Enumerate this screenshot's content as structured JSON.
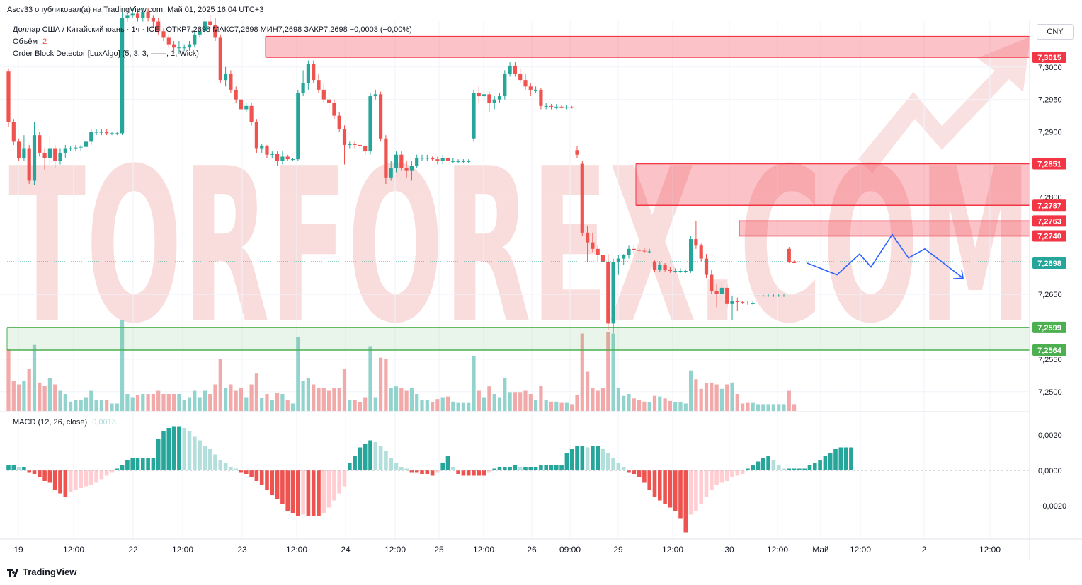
{
  "header": {
    "published": "Ascv33 опубликовал(а) на TradingView.com, Май 01, 2025 16:04 UTC+3",
    "symbol": "Доллар США / Китайский юань · 1ч · ICE",
    "ohlc": "ОТКР7,2698  МАКС7,2698  МИН7,2698  ЗАКР7,2698  −0,0003 (−0,00%)",
    "volume_label": "Объём",
    "volume_value": "2",
    "indicator": "Order Block Detector [LuxAlgo] (5, 3, 3, ——, 1, Wick)"
  },
  "currency_button": "CNY",
  "brand": "TradingView",
  "watermark": "TORFOREX.COM",
  "colors": {
    "up": "#26a69a",
    "down": "#ef5350",
    "up_light": "#b2dfdb",
    "down_light": "#ffcdd2",
    "zone_red": "#f23645",
    "zone_green": "#4caf50",
    "forecast": "#2962ff"
  },
  "chart_data": {
    "type": "candlestick",
    "price_axis": {
      "ticks": [
        "7,3000",
        "7,2950",
        "7,2900",
        "7,2800",
        "7,2650",
        "7,2550",
        "7,2500"
      ],
      "min": 7.2475,
      "max": 7.3055
    },
    "price_badges": [
      {
        "label": "7,3015",
        "color": "red"
      },
      {
        "label": "7,2851",
        "color": "red"
      },
      {
        "label": "7,2787",
        "color": "red"
      },
      {
        "label": "7,2763",
        "color": "red"
      },
      {
        "label": "7,2740",
        "color": "red"
      },
      {
        "label": "7,2698",
        "color": "green"
      },
      {
        "label": "7,2599",
        "color": "green"
      },
      {
        "label": "7,2564",
        "color": "green"
      }
    ],
    "time_axis": [
      "19",
      "12:00",
      "22",
      "12:00",
      "23",
      "12:00",
      "24",
      "12:00",
      "25",
      "12:00",
      "26",
      "09:00",
      "29",
      "12:00",
      "30",
      "12:00",
      "Май",
      "12:00",
      "2",
      "12:00"
    ],
    "order_blocks": [
      {
        "type": "bearish",
        "top": 7.3047,
        "bottom": 7.3015
      },
      {
        "type": "bearish",
        "top": 7.2851,
        "bottom": 7.2787
      },
      {
        "type": "bearish",
        "top": 7.2763,
        "bottom": 7.274
      },
      {
        "type": "bullish",
        "top": 7.2599,
        "bottom": 7.2564
      }
    ],
    "candles": [
      [
        7.2993,
        7.2998,
        7.2908,
        7.2915
      ],
      [
        7.2915,
        7.292,
        7.288,
        7.2885
      ],
      [
        7.2885,
        7.289,
        7.2855,
        7.286
      ],
      [
        7.286,
        7.2895,
        7.2855,
        7.2875
      ],
      [
        7.2875,
        7.288,
        7.282,
        7.2825
      ],
      [
        7.2825,
        7.2915,
        7.2818,
        7.2895
      ],
      [
        7.2895,
        7.29,
        7.2862,
        7.2868
      ],
      [
        7.2868,
        7.2875,
        7.2842,
        7.286
      ],
      [
        7.286,
        7.2895,
        7.285,
        7.2875
      ],
      [
        7.2875,
        7.288,
        7.2845,
        7.2855
      ],
      [
        7.2855,
        7.2875,
        7.285,
        7.2868
      ],
      [
        7.2868,
        7.288,
        7.286,
        7.2875
      ],
      [
        7.2875,
        7.2878,
        7.287,
        7.2875
      ],
      [
        7.2875,
        7.288,
        7.287,
        7.2876
      ],
      [
        7.2876,
        7.288,
        7.287,
        7.2877
      ],
      [
        7.2877,
        7.289,
        7.2875,
        7.2885
      ],
      [
        7.2885,
        7.2905,
        7.288,
        7.29
      ],
      [
        7.29,
        7.2905,
        7.2895,
        7.29
      ],
      [
        7.29,
        7.2905,
        7.2895,
        7.29
      ],
      [
        7.29,
        7.2905,
        7.2895,
        7.2898
      ],
      [
        7.2898,
        7.29,
        7.2895,
        7.2898
      ],
      [
        7.2898,
        7.29,
        7.2895,
        7.2898
      ],
      [
        7.2898,
        7.3085,
        7.2895,
        7.3075
      ],
      [
        7.3075,
        7.309,
        7.307,
        7.308
      ],
      [
        7.308,
        7.309,
        7.3075,
        7.3082
      ],
      [
        7.3082,
        7.3088,
        7.307,
        7.3075
      ],
      [
        7.3075,
        7.309,
        7.307,
        7.3085
      ],
      [
        7.3085,
        7.309,
        7.307,
        7.3075
      ],
      [
        7.3075,
        7.308,
        7.306,
        7.307
      ],
      [
        7.307,
        7.3075,
        7.305,
        7.3055
      ],
      [
        7.3055,
        7.306,
        7.304,
        7.3045
      ],
      [
        7.3045,
        7.305,
        7.303,
        7.3035
      ],
      [
        7.3035,
        7.304,
        7.302,
        7.303
      ],
      [
        7.303,
        7.304,
        7.302,
        7.303
      ],
      [
        7.303,
        7.3035,
        7.3025,
        7.303
      ],
      [
        7.303,
        7.304,
        7.3025,
        7.3035
      ],
      [
        7.3035,
        7.3055,
        7.303,
        7.305
      ],
      [
        7.305,
        7.306,
        7.3045,
        7.3055
      ],
      [
        7.3055,
        7.3075,
        7.305,
        7.307
      ],
      [
        7.307,
        7.308,
        7.306,
        7.3065
      ],
      [
        7.3065,
        7.3075,
        7.304,
        7.3045
      ],
      [
        7.3045,
        7.305,
        7.2975,
        7.298
      ],
      [
        7.298,
        7.3,
        7.297,
        7.299
      ],
      [
        7.299,
        7.2995,
        7.296,
        7.2965
      ],
      [
        7.2965,
        7.297,
        7.2945,
        7.295
      ],
      [
        7.295,
        7.2955,
        7.2925,
        7.2935
      ],
      [
        7.2935,
        7.2945,
        7.293,
        7.294
      ],
      [
        7.294,
        7.2945,
        7.291,
        7.2915
      ],
      [
        7.2915,
        7.292,
        7.2868,
        7.2875
      ],
      [
        7.2875,
        7.2882,
        7.2868,
        7.2878
      ],
      [
        7.2878,
        7.288,
        7.286,
        7.2865
      ],
      [
        7.2865,
        7.287,
        7.286,
        7.2866
      ],
      [
        7.2866,
        7.287,
        7.2848,
        7.2855
      ],
      [
        7.2855,
        7.287,
        7.285,
        7.2862
      ],
      [
        7.2862,
        7.2865,
        7.2855,
        7.2858
      ],
      [
        7.2858,
        7.286,
        7.2855,
        7.2858
      ],
      [
        7.2858,
        7.2965,
        7.2855,
        7.296
      ],
      [
        7.296,
        7.2995,
        7.2955,
        7.2975
      ],
      [
        7.2975,
        7.301,
        7.2965,
        7.3005
      ],
      [
        7.3005,
        7.301,
        7.2975,
        7.298
      ],
      [
        7.298,
        7.299,
        7.296,
        7.2965
      ],
      [
        7.2965,
        7.2975,
        7.2945,
        7.295
      ],
      [
        7.295,
        7.296,
        7.2935,
        7.2945
      ],
      [
        7.2945,
        7.295,
        7.292,
        7.2925
      ],
      [
        7.2925,
        7.293,
        7.29,
        7.2905
      ],
      [
        7.2905,
        7.291,
        7.285,
        7.288
      ],
      [
        7.288,
        7.2885,
        7.2875,
        7.2882
      ],
      [
        7.2882,
        7.2885,
        7.2875,
        7.288
      ],
      [
        7.288,
        7.2882,
        7.2875,
        7.2878
      ],
      [
        7.2878,
        7.288,
        7.2865,
        7.287
      ],
      [
        7.287,
        7.296,
        7.2865,
        7.2955
      ],
      [
        7.2955,
        7.2965,
        7.295,
        7.2958
      ],
      [
        7.2958,
        7.2962,
        7.2885,
        7.289
      ],
      [
        7.289,
        7.2895,
        7.282,
        7.283
      ],
      [
        7.283,
        7.2855,
        7.2825,
        7.2845
      ],
      [
        7.2845,
        7.287,
        7.2838,
        7.2865
      ],
      [
        7.2865,
        7.287,
        7.284,
        7.2845
      ],
      [
        7.2845,
        7.2855,
        7.283,
        7.284
      ],
      [
        7.284,
        7.2855,
        7.2825,
        7.2848
      ],
      [
        7.2848,
        7.2865,
        7.2845,
        7.286
      ],
      [
        7.286,
        7.2865,
        7.2855,
        7.286
      ],
      [
        7.286,
        7.2865,
        7.2855,
        7.286
      ],
      [
        7.286,
        7.2862,
        7.2855,
        7.2858
      ],
      [
        7.2858,
        7.2862,
        7.285,
        7.2855
      ],
      [
        7.2855,
        7.2865,
        7.285,
        7.286
      ],
      [
        7.286,
        7.2868,
        7.2852,
        7.2855
      ],
      [
        7.2855,
        7.286,
        7.2852,
        7.2855
      ],
      [
        7.2855,
        7.2858,
        7.2852,
        7.2855
      ],
      [
        7.2855,
        7.2858,
        7.2852,
        7.2855
      ],
      [
        7.2855,
        7.2858,
        7.2852,
        7.2855
      ],
      [
        7.289,
        7.2965,
        7.2885,
        7.296
      ],
      [
        7.296,
        7.297,
        7.2945,
        7.2955
      ],
      [
        7.2955,
        7.2965,
        7.295,
        7.2958
      ],
      [
        7.2958,
        7.2962,
        7.293,
        7.2945
      ],
      [
        7.2945,
        7.2955,
        7.2935,
        7.295
      ],
      [
        7.295,
        7.296,
        7.2945,
        7.2955
      ],
      [
        7.2955,
        7.2995,
        7.295,
        7.299
      ],
      [
        7.299,
        7.3008,
        7.2985,
        7.3002
      ],
      [
        7.3002,
        7.3008,
        7.2985,
        7.299
      ],
      [
        7.299,
        7.2998,
        7.2975,
        7.298
      ],
      [
        7.298,
        7.299,
        7.2965,
        7.297
      ],
      [
        7.297,
        7.2975,
        7.2955,
        7.2965
      ],
      [
        7.2965,
        7.297,
        7.296,
        7.2965
      ],
      [
        7.2965,
        7.2968,
        7.2935,
        7.294
      ],
      [
        7.294,
        7.2945,
        7.2935,
        7.294
      ],
      [
        7.294,
        7.2943,
        7.2935,
        7.2939
      ],
      [
        7.2939,
        7.2943,
        7.2935,
        7.2939
      ],
      [
        7.2939,
        7.2942,
        7.2936,
        7.2938
      ],
      [
        7.2938,
        7.2941,
        7.2935,
        7.2938
      ],
      [
        7.2938,
        7.294,
        7.2936,
        7.2937
      ],
      [
        7.2872,
        7.2878,
        7.286,
        7.2865
      ],
      [
        7.2851,
        7.2855,
        7.274,
        7.2745
      ],
      [
        7.2745,
        7.2755,
        7.27,
        7.273
      ],
      [
        7.273,
        7.2745,
        7.2715,
        7.272
      ],
      [
        7.272,
        7.2725,
        7.27,
        7.271
      ],
      [
        7.271,
        7.272,
        7.269,
        7.27
      ],
      [
        7.27,
        7.2712,
        7.2595,
        7.2605
      ],
      [
        7.2605,
        7.2705,
        7.259,
        7.27
      ],
      [
        7.27,
        7.271,
        7.268,
        7.2705
      ],
      [
        7.2705,
        7.2712,
        7.2695,
        7.271
      ],
      [
        7.271,
        7.2725,
        7.2705,
        7.272
      ],
      [
        7.272,
        7.2725,
        7.2712,
        7.2718
      ],
      [
        7.2718,
        7.2722,
        7.2712,
        7.2717
      ],
      [
        7.2717,
        7.2721,
        7.2713,
        7.2716
      ],
      [
        7.2716,
        7.272,
        7.2713,
        7.2716
      ],
      [
        7.27,
        7.2702,
        7.2685,
        7.2688
      ],
      [
        7.2688,
        7.27,
        7.2684,
        7.2695
      ],
      [
        7.2695,
        7.2698,
        7.2685,
        7.2688
      ],
      [
        7.2688,
        7.2692,
        7.2683,
        7.2686
      ],
      [
        7.2686,
        7.269,
        7.2683,
        7.2686
      ],
      [
        7.2686,
        7.269,
        7.2683,
        7.2686
      ],
      [
        7.2686,
        7.2688,
        7.2683,
        7.2686
      ],
      [
        7.2686,
        7.274,
        7.2683,
        7.2735
      ],
      [
        7.2735,
        7.2763,
        7.272,
        7.2725
      ],
      [
        7.2725,
        7.2728,
        7.27,
        7.2705
      ],
      [
        7.2705,
        7.2712,
        7.2675,
        7.268
      ],
      [
        7.268,
        7.2688,
        7.265,
        7.2655
      ],
      [
        7.2655,
        7.2665,
        7.263,
        7.265
      ],
      [
        7.265,
        7.2668,
        7.264,
        7.266
      ],
      [
        7.266,
        7.2665,
        7.263,
        7.2635
      ],
      [
        7.2635,
        7.2648,
        7.261,
        7.264
      ],
      [
        7.264,
        7.2645,
        7.2625,
        7.2638
      ],
      [
        7.2638,
        7.264,
        7.2635,
        7.2637
      ],
      [
        7.2637,
        7.264,
        7.2634,
        7.2636
      ],
      [
        7.2636,
        7.264,
        7.2634,
        7.2636
      ],
      [
        7.2648,
        7.265,
        7.2646,
        7.2648
      ],
      [
        7.2648,
        7.265,
        7.2646,
        7.2648
      ],
      [
        7.2648,
        7.265,
        7.2646,
        7.2648
      ],
      [
        7.2648,
        7.265,
        7.2646,
        7.2648
      ],
      [
        7.2648,
        7.265,
        7.2646,
        7.2648
      ],
      [
        7.2648,
        7.265,
        7.2646,
        7.2648
      ],
      [
        7.272,
        7.2723,
        7.2698,
        7.27
      ],
      [
        7.27,
        7.2702,
        7.2698,
        7.2698
      ]
    ],
    "forecast": [
      7.2698,
      7.268,
      7.2712,
      7.2692,
      7.2742,
      7.2706,
      7.272,
      7.2675
    ],
    "macd": {
      "label": "MACD (12, 26, close)",
      "value": "0,0013",
      "ticks": [
        "0,0020",
        "0,0000",
        "−0,0020"
      ],
      "histogram": [
        0.0003,
        0.0003,
        0.0002,
        0.0002,
        -0.0001,
        -0.0002,
        -0.0004,
        -0.0006,
        -0.0007,
        -0.0011,
        -0.0013,
        -0.0015,
        -0.0012,
        -0.0011,
        -0.001,
        -0.0009,
        -0.0008,
        -0.0007,
        -0.0005,
        -0.0003,
        -0.0001,
        0.0001,
        0.0003,
        0.0006,
        0.0007,
        0.0007,
        0.0007,
        0.0007,
        0.0007,
        0.0018,
        0.0022,
        0.0024,
        0.0025,
        0.0025,
        0.0024,
        0.0022,
        0.0019,
        0.0017,
        0.0014,
        0.0012,
        0.0009,
        0.0006,
        0.0004,
        0.0002,
        0.0001,
        -0.0001,
        -0.0002,
        -0.0004,
        -0.0006,
        -0.0008,
        -0.0011,
        -0.0014,
        -0.0016,
        -0.0019,
        -0.0023,
        -0.0024,
        -0.0026,
        -0.0025,
        -0.0026,
        -0.0026,
        -0.0026,
        -0.0024,
        -0.0021,
        -0.0017,
        -0.0013,
        -0.0009,
        0.0004,
        0.0008,
        0.0013,
        0.0015,
        0.0017,
        0.0016,
        0.0014,
        0.0011,
        0.0007,
        0.0004,
        0.0002,
        0.0001,
        -0.0001,
        -0.0001,
        -0.0002,
        -0.0002,
        -0.0003,
        -0.0001,
        0.0004,
        0.0008,
        0.0002,
        -0.0002,
        -0.0003,
        -0.0003,
        -0.0003,
        -0.0003,
        -0.0003,
        -0.0001,
        0.0001,
        0.0002,
        0.0002,
        0.0002,
        0.0003,
        0.0002,
        0.0002,
        0.0002,
        0.0002,
        0.0003,
        0.0003,
        0.0003,
        0.0003,
        0.0003,
        0.001,
        0.0012,
        0.0014,
        0.0014,
        0.0013,
        0.0014,
        0.0014,
        0.0012,
        0.001,
        0.0007,
        0.0004,
        0.0002,
        -0.0001,
        -0.0002,
        -0.0004,
        -0.0007,
        -0.0011,
        -0.0015,
        -0.0017,
        -0.0019,
        -0.0021,
        -0.0023,
        -0.0027,
        -0.0035,
        -0.0025,
        -0.0023,
        -0.0019,
        -0.0015,
        -0.0011,
        -0.0008,
        -0.0007,
        -0.0006,
        -0.0004,
        -0.0003,
        -0.0002,
        0.0001,
        0.0003,
        0.0005,
        0.0007,
        0.0008,
        0.0006,
        0.0003,
        0.0001,
        0.0001,
        0.0001,
        0.0001,
        0.0001,
        0.0003,
        0.0004,
        0.0006,
        0.0008,
        0.001,
        0.0012,
        0.0013,
        0.0013,
        0.0013
      ]
    }
  }
}
